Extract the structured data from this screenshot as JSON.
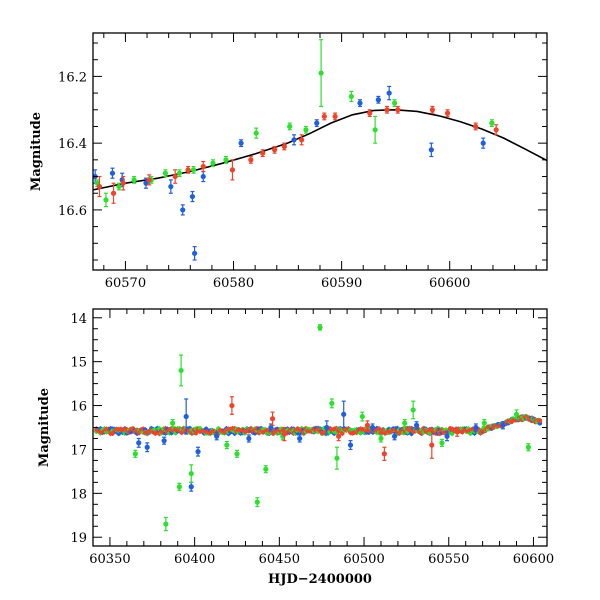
{
  "figure": {
    "xlabel_bottom": "HJD−2400000"
  },
  "chart_data": [
    {
      "type": "scatter",
      "title": "",
      "xlabel": "",
      "ylabel": "Magnitude",
      "xlim": [
        60567,
        60609
      ],
      "ylim": [
        16.78,
        16.07
      ],
      "y_inverted": true,
      "grid": false,
      "legend": "none",
      "xticks": [
        60570,
        60580,
        60590,
        60600
      ],
      "yticks": [
        16.2,
        16.4,
        16.6
      ],
      "xtick_labels": [
        "60570",
        "60580",
        "60590",
        "60600"
      ],
      "ytick_labels": [
        "16.2",
        "16.4",
        "16.6"
      ],
      "series": [
        {
          "color": "#1f5fe0",
          "points": [
            {
              "x": 60567.2,
              "y": 16.5,
              "e": 0.02
            },
            {
              "x": 60568.8,
              "y": 16.49,
              "e": 0.015
            },
            {
              "x": 60569.7,
              "y": 16.51,
              "e": 0.02
            },
            {
              "x": 60571.9,
              "y": 16.52,
              "e": 0.015
            },
            {
              "x": 60574.2,
              "y": 16.53,
              "e": 0.02
            },
            {
              "x": 60575.3,
              "y": 16.6,
              "e": 0.015
            },
            {
              "x": 60576.2,
              "y": 16.56,
              "e": 0.015
            },
            {
              "x": 60576.4,
              "y": 16.73,
              "e": 0.02
            },
            {
              "x": 60577.2,
              "y": 16.5,
              "e": 0.015
            },
            {
              "x": 60580.7,
              "y": 16.4,
              "e": 0.01
            },
            {
              "x": 60585.6,
              "y": 16.39,
              "e": 0.015
            },
            {
              "x": 60587.7,
              "y": 16.34,
              "e": 0.01
            },
            {
              "x": 60591.7,
              "y": 16.28,
              "e": 0.01
            },
            {
              "x": 60593.4,
              "y": 16.27,
              "e": 0.01
            },
            {
              "x": 60594.4,
              "y": 16.25,
              "e": 0.02
            },
            {
              "x": 60598.3,
              "y": 16.42,
              "e": 0.02
            },
            {
              "x": 60603.1,
              "y": 16.4,
              "e": 0.015
            }
          ]
        },
        {
          "color": "#2ee02e",
          "points": [
            {
              "x": 60567.4,
              "y": 16.52,
              "e": 0.01
            },
            {
              "x": 60568.2,
              "y": 16.57,
              "e": 0.02
            },
            {
              "x": 60569.4,
              "y": 16.53,
              "e": 0.01
            },
            {
              "x": 60570.8,
              "y": 16.51,
              "e": 0.01
            },
            {
              "x": 60572.4,
              "y": 16.51,
              "e": 0.01
            },
            {
              "x": 60573.7,
              "y": 16.49,
              "e": 0.01
            },
            {
              "x": 60575.0,
              "y": 16.49,
              "e": 0.01
            },
            {
              "x": 60576.3,
              "y": 16.48,
              "e": 0.01
            },
            {
              "x": 60578.1,
              "y": 16.46,
              "e": 0.01
            },
            {
              "x": 60579.3,
              "y": 16.45,
              "e": 0.01
            },
            {
              "x": 60582.1,
              "y": 16.37,
              "e": 0.015
            },
            {
              "x": 60585.2,
              "y": 16.35,
              "e": 0.01
            },
            {
              "x": 60586.7,
              "y": 16.36,
              "e": 0.01
            },
            {
              "x": 60588.1,
              "y": 16.19,
              "e": 0.1
            },
            {
              "x": 60590.9,
              "y": 16.26,
              "e": 0.015
            },
            {
              "x": 60593.1,
              "y": 16.36,
              "e": 0.04
            },
            {
              "x": 60594.9,
              "y": 16.28,
              "e": 0.01
            },
            {
              "x": 60603.9,
              "y": 16.34,
              "e": 0.01
            }
          ]
        },
        {
          "color": "#f0442a",
          "points": [
            {
              "x": 60567.6,
              "y": 16.53,
              "e": 0.03
            },
            {
              "x": 60568.9,
              "y": 16.55,
              "e": 0.03
            },
            {
              "x": 60569.8,
              "y": 16.52,
              "e": 0.02
            },
            {
              "x": 60572.2,
              "y": 16.51,
              "e": 0.015
            },
            {
              "x": 60574.6,
              "y": 16.5,
              "e": 0.02
            },
            {
              "x": 60575.8,
              "y": 16.48,
              "e": 0.01
            },
            {
              "x": 60577.2,
              "y": 16.47,
              "e": 0.015
            },
            {
              "x": 60579.9,
              "y": 16.48,
              "e": 0.03
            },
            {
              "x": 60581.6,
              "y": 16.45,
              "e": 0.01
            },
            {
              "x": 60582.7,
              "y": 16.43,
              "e": 0.01
            },
            {
              "x": 60583.8,
              "y": 16.42,
              "e": 0.01
            },
            {
              "x": 60584.7,
              "y": 16.41,
              "e": 0.01
            },
            {
              "x": 60586.3,
              "y": 16.39,
              "e": 0.015
            },
            {
              "x": 60588.4,
              "y": 16.32,
              "e": 0.01
            },
            {
              "x": 60589.4,
              "y": 16.32,
              "e": 0.01
            },
            {
              "x": 60592.6,
              "y": 16.31,
              "e": 0.01
            },
            {
              "x": 60594.2,
              "y": 16.3,
              "e": 0.01
            },
            {
              "x": 60595.2,
              "y": 16.3,
              "e": 0.01
            },
            {
              "x": 60598.4,
              "y": 16.3,
              "e": 0.01
            },
            {
              "x": 60599.8,
              "y": 16.31,
              "e": 0.01
            },
            {
              "x": 60602.4,
              "y": 16.35,
              "e": 0.01
            },
            {
              "x": 60604.3,
              "y": 16.36,
              "e": 0.015
            }
          ]
        }
      ],
      "model_curve": {
        "color": "#000000",
        "points": [
          {
            "x": 60567,
            "y": 16.54
          },
          {
            "x": 60570,
            "y": 16.52
          },
          {
            "x": 60573,
            "y": 16.505
          },
          {
            "x": 60576,
            "y": 16.485
          },
          {
            "x": 60579,
            "y": 16.46
          },
          {
            "x": 60582,
            "y": 16.432
          },
          {
            "x": 60585,
            "y": 16.4
          },
          {
            "x": 60587,
            "y": 16.372
          },
          {
            "x": 60589,
            "y": 16.34
          },
          {
            "x": 60591,
            "y": 16.315
          },
          {
            "x": 60593,
            "y": 16.302
          },
          {
            "x": 60595,
            "y": 16.3
          },
          {
            "x": 60597,
            "y": 16.305
          },
          {
            "x": 60599,
            "y": 16.318
          },
          {
            "x": 60601,
            "y": 16.336
          },
          {
            "x": 60603,
            "y": 16.358
          },
          {
            "x": 60605,
            "y": 16.385
          },
          {
            "x": 60607,
            "y": 16.418
          },
          {
            "x": 60609,
            "y": 16.452
          }
        ]
      }
    },
    {
      "type": "scatter",
      "title": "",
      "xlabel": "HJD−2400000",
      "ylabel": "Magnitude",
      "xlim": [
        60340,
        60608
      ],
      "ylim": [
        19.2,
        13.8
      ],
      "y_inverted": true,
      "grid": false,
      "legend": "none",
      "xticks": [
        60350,
        60400,
        60450,
        60500,
        60550,
        60600
      ],
      "yticks": [
        14,
        15,
        16,
        17,
        18,
        19
      ],
      "xtick_labels": [
        "60350",
        "60400",
        "60450",
        "60500",
        "60550",
        "60600"
      ],
      "ytick_labels": [
        "14",
        "15",
        "16",
        "17",
        "18",
        "19"
      ],
      "baseline": {
        "x_start": 60342,
        "x_end": 60570,
        "y": 16.58
      },
      "baseline_rise": [
        {
          "x": 60570,
          "y": 16.55
        },
        {
          "x": 60580,
          "y": 16.45
        },
        {
          "x": 60590,
          "y": 16.3
        },
        {
          "x": 60596,
          "y": 16.28
        },
        {
          "x": 60604,
          "y": 16.38
        }
      ],
      "series": [
        {
          "color": "#1f5fe0",
          "points": [
            {
              "x": 60398,
              "y": 17.85,
              "e": 0.1
            },
            {
              "x": 60395,
              "y": 16.25,
              "e": 0.4
            },
            {
              "x": 60367,
              "y": 16.85,
              "e": 0.1
            },
            {
              "x": 60372,
              "y": 16.95,
              "e": 0.1
            },
            {
              "x": 60382,
              "y": 16.8,
              "e": 0.08
            },
            {
              "x": 60402,
              "y": 17.05,
              "e": 0.1
            },
            {
              "x": 60413,
              "y": 16.7,
              "e": 0.08
            },
            {
              "x": 60432,
              "y": 16.75,
              "e": 0.08
            },
            {
              "x": 60445,
              "y": 16.5,
              "e": 0.08
            },
            {
              "x": 60462,
              "y": 16.75,
              "e": 0.08
            },
            {
              "x": 60478,
              "y": 16.5,
              "e": 0.15
            },
            {
              "x": 60488,
              "y": 16.2,
              "e": 0.3
            },
            {
              "x": 60492,
              "y": 16.9,
              "e": 0.1
            },
            {
              "x": 60505,
              "y": 16.5,
              "e": 0.08
            },
            {
              "x": 60518,
              "y": 16.7,
              "e": 0.08
            },
            {
              "x": 60531,
              "y": 16.45,
              "e": 0.08
            },
            {
              "x": 60549,
              "y": 16.7,
              "e": 0.1
            },
            {
              "x": 60566,
              "y": 16.5,
              "e": 0.08
            },
            {
              "x": 60582,
              "y": 16.45,
              "e": 0.08
            }
          ]
        },
        {
          "color": "#2ee02e",
          "points": [
            {
              "x": 60474,
              "y": 14.22,
              "e": 0.06
            },
            {
              "x": 60392,
              "y": 15.2,
              "e": 0.35
            },
            {
              "x": 60398,
              "y": 17.55,
              "e": 0.2
            },
            {
              "x": 60383,
              "y": 18.7,
              "e": 0.15
            },
            {
              "x": 60391,
              "y": 17.85,
              "e": 0.08
            },
            {
              "x": 60437,
              "y": 18.2,
              "e": 0.1
            },
            {
              "x": 60442,
              "y": 17.45,
              "e": 0.08
            },
            {
              "x": 60425,
              "y": 17.1,
              "e": 0.08
            },
            {
              "x": 60481,
              "y": 15.95,
              "e": 0.1
            },
            {
              "x": 60484,
              "y": 17.2,
              "e": 0.25
            },
            {
              "x": 60499,
              "y": 16.25,
              "e": 0.1
            },
            {
              "x": 60529,
              "y": 16.1,
              "e": 0.2
            },
            {
              "x": 60365,
              "y": 17.1,
              "e": 0.08
            },
            {
              "x": 60387,
              "y": 16.4,
              "e": 0.08
            },
            {
              "x": 60419,
              "y": 16.9,
              "e": 0.08
            },
            {
              "x": 60452,
              "y": 16.7,
              "e": 0.08
            },
            {
              "x": 60510,
              "y": 16.75,
              "e": 0.08
            },
            {
              "x": 60524,
              "y": 16.4,
              "e": 0.08
            },
            {
              "x": 60546,
              "y": 16.85,
              "e": 0.08
            },
            {
              "x": 60571,
              "y": 16.4,
              "e": 0.08
            },
            {
              "x": 60590,
              "y": 16.2,
              "e": 0.1
            },
            {
              "x": 60597,
              "y": 16.95,
              "e": 0.08
            }
          ]
        },
        {
          "color": "#f0442a",
          "points": [
            {
              "x": 60422,
              "y": 16.0,
              "e": 0.2
            },
            {
              "x": 60446,
              "y": 16.3,
              "e": 0.15
            },
            {
              "x": 60512,
              "y": 17.1,
              "e": 0.15
            },
            {
              "x": 60540,
              "y": 16.9,
              "e": 0.3
            },
            {
              "x": 60453,
              "y": 16.65,
              "e": 0.15
            },
            {
              "x": 60485,
              "y": 16.7,
              "e": 0.1
            },
            {
              "x": 60502,
              "y": 16.45,
              "e": 0.1
            },
            {
              "x": 60555,
              "y": 16.6,
              "e": 0.1
            }
          ]
        }
      ]
    }
  ]
}
